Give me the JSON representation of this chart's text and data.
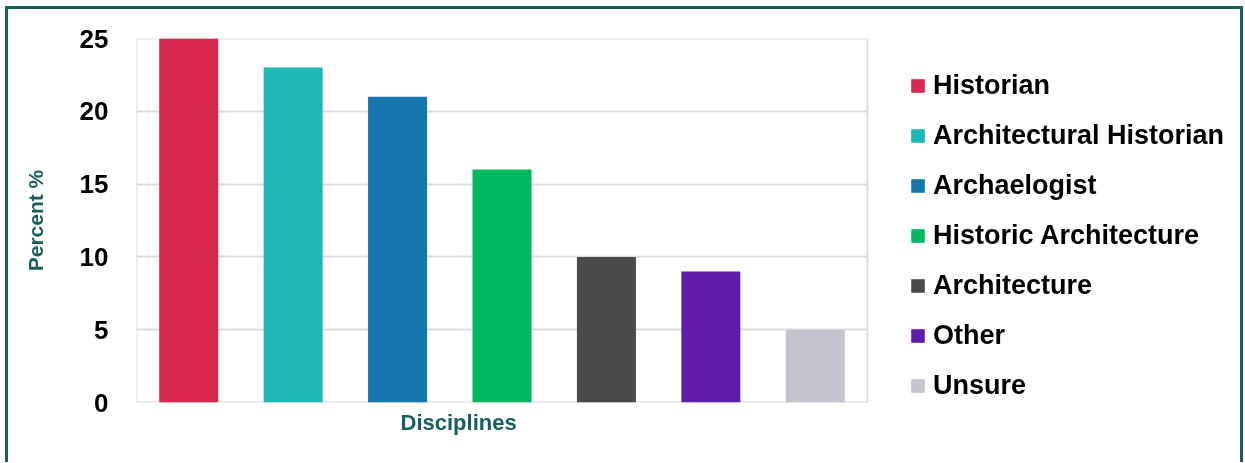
{
  "chart_data": {
    "type": "bar",
    "xlabel": "Disciplines",
    "ylabel": "Percent %",
    "categories": [
      null
    ],
    "series": [
      {
        "name": "Historian",
        "color": "#d8284f",
        "values": [
          25
        ]
      },
      {
        "name": "Architectural Historian",
        "color": "#1fb8b8",
        "values": [
          23
        ]
      },
      {
        "name": "Archaelogist",
        "color": "#1577ae",
        "values": [
          21
        ]
      },
      {
        "name": "Historic Architecture",
        "color": "#00b862",
        "values": [
          16
        ]
      },
      {
        "name": "Architecture",
        "color": "#4a4a4a",
        "values": [
          10
        ]
      },
      {
        "name": "Other",
        "color": "#5f1ca8",
        "values": [
          9
        ]
      },
      {
        "name": "Unsure",
        "color": "#c3c2cd",
        "values": [
          5
        ]
      }
    ],
    "ylim": [
      0,
      25
    ],
    "yticks": [
      0,
      5,
      10,
      15,
      20,
      25
    ],
    "grid": "y",
    "legend": "right",
    "tick_labels": "y"
  }
}
